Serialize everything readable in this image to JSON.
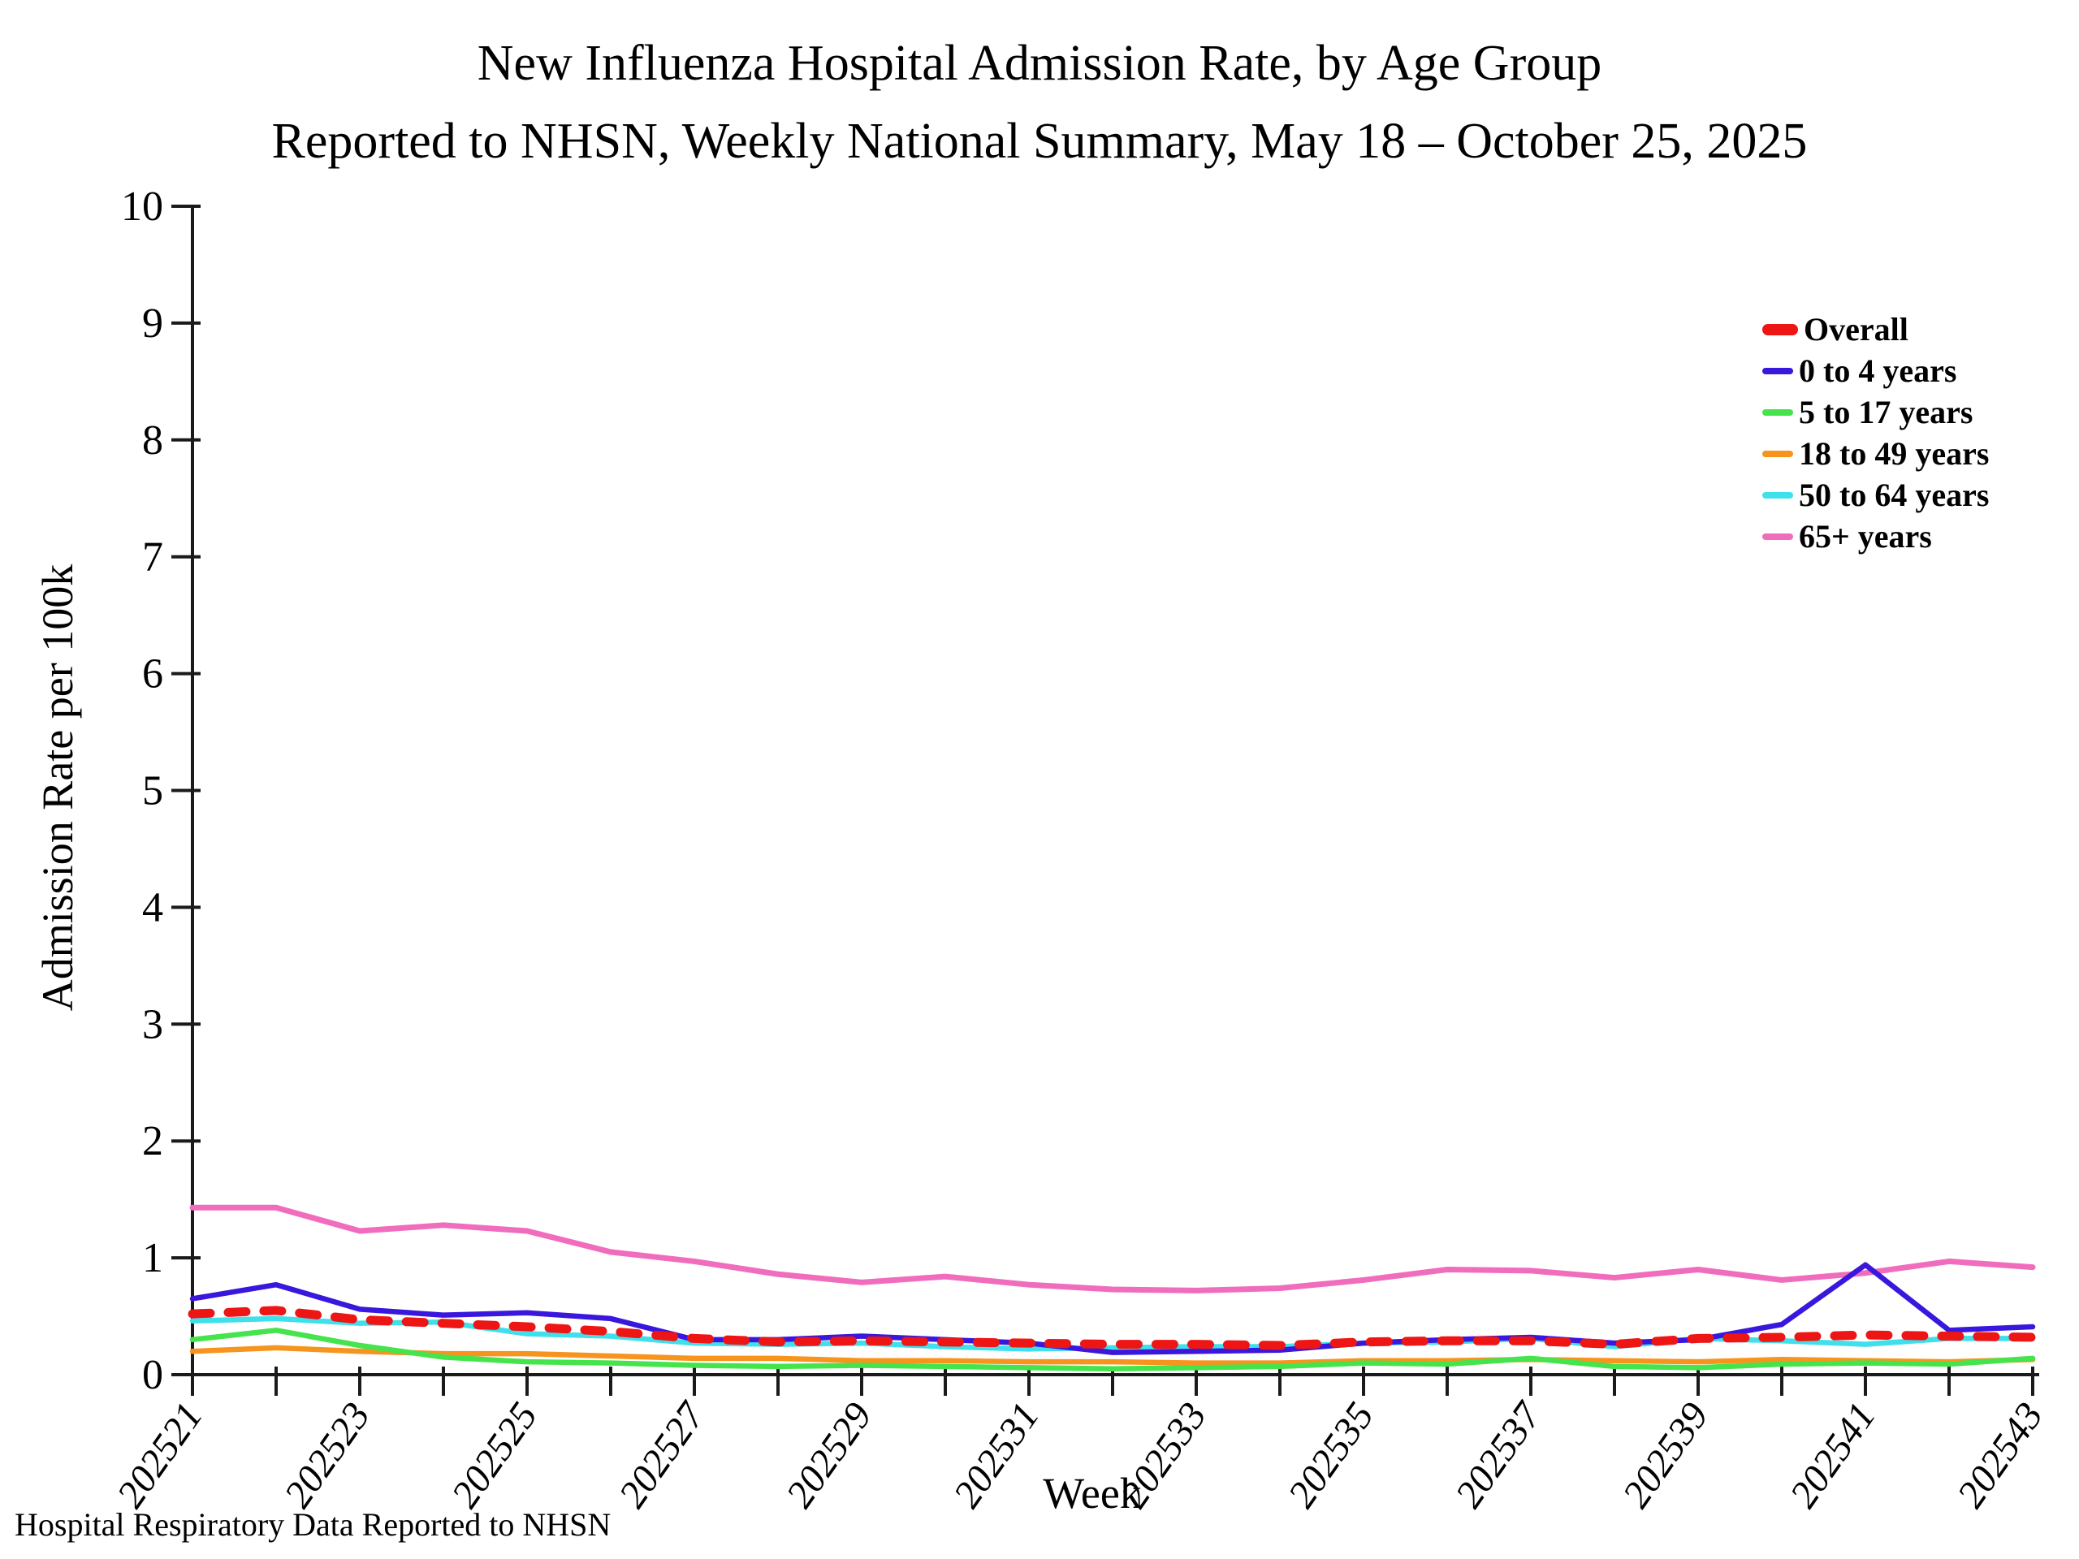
{
  "page": {
    "title_line1": "New Influenza Hospital Admission Rate, by Age Group",
    "title_line2": "Reported to NHSN, Weekly National Summary, May 18 – October 25, 2025",
    "footer": "Hospital Respiratory Data Reported to NHSN"
  },
  "colors": {
    "overall": "#ee1515",
    "age_0_4": "#3a17dd",
    "age_5_17": "#45e44c",
    "age_18_49": "#f7941e",
    "age_50_64": "#3fdfec",
    "age_65_plus": "#f06dbe",
    "axis": "#1a1a1a"
  },
  "chart_data": {
    "type": "line",
    "title": "New Influenza Hospital Admission Rate, by Age Group — Reported to NHSN, Weekly National Summary, May 18 – October 25, 2025",
    "xlabel": "Week",
    "ylabel": "Admission Rate per 100k",
    "ylim": [
      0,
      10
    ],
    "y_ticks": [
      0,
      1,
      2,
      3,
      4,
      5,
      6,
      7,
      8,
      9,
      10
    ],
    "grid": false,
    "legend_position": "top-right",
    "x_label_every": 2,
    "x": [
      202521,
      202522,
      202523,
      202524,
      202525,
      202526,
      202527,
      202528,
      202529,
      202530,
      202531,
      202532,
      202533,
      202534,
      202535,
      202536,
      202537,
      202538,
      202539,
      202540,
      202541,
      202542,
      202543
    ],
    "series": [
      {
        "name": "Overall",
        "color_key": "overall",
        "dashed": true,
        "width": 11,
        "values": [
          0.52,
          0.55,
          0.47,
          0.44,
          0.41,
          0.37,
          0.31,
          0.28,
          0.29,
          0.28,
          0.27,
          0.26,
          0.26,
          0.25,
          0.28,
          0.29,
          0.29,
          0.26,
          0.31,
          0.32,
          0.34,
          0.33,
          0.32
        ]
      },
      {
        "name": "0 to 4 years",
        "color_key": "age_0_4",
        "dashed": false,
        "width": 6.5,
        "values": [
          0.65,
          0.77,
          0.56,
          0.51,
          0.53,
          0.48,
          0.3,
          0.3,
          0.33,
          0.3,
          0.27,
          0.19,
          0.2,
          0.21,
          0.27,
          0.3,
          0.32,
          0.27,
          0.3,
          0.43,
          0.94,
          0.38,
          0.41
        ]
      },
      {
        "name": "5 to 17 years",
        "color_key": "age_5_17",
        "dashed": false,
        "width": 6.5,
        "values": [
          0.3,
          0.38,
          0.25,
          0.15,
          0.11,
          0.1,
          0.08,
          0.07,
          0.08,
          0.07,
          0.06,
          0.05,
          0.06,
          0.07,
          0.1,
          0.09,
          0.14,
          0.07,
          0.06,
          0.09,
          0.1,
          0.09,
          0.14
        ]
      },
      {
        "name": "18 to 49 years",
        "color_key": "age_18_49",
        "dashed": false,
        "width": 6.5,
        "values": [
          0.2,
          0.23,
          0.2,
          0.18,
          0.18,
          0.16,
          0.14,
          0.14,
          0.12,
          0.12,
          0.11,
          0.11,
          0.1,
          0.1,
          0.12,
          0.12,
          0.13,
          0.12,
          0.11,
          0.13,
          0.12,
          0.11,
          0.13
        ]
      },
      {
        "name": "50 to 64 years",
        "color_key": "age_50_64",
        "dashed": false,
        "width": 6.5,
        "values": [
          0.46,
          0.48,
          0.44,
          0.45,
          0.35,
          0.33,
          0.27,
          0.26,
          0.27,
          0.24,
          0.22,
          0.23,
          0.24,
          0.24,
          0.27,
          0.28,
          0.31,
          0.24,
          0.31,
          0.29,
          0.26,
          0.31,
          0.31
        ]
      },
      {
        "name": "65+ years",
        "color_key": "age_65_plus",
        "dashed": false,
        "width": 7,
        "values": [
          1.43,
          1.43,
          1.23,
          1.28,
          1.23,
          1.05,
          0.97,
          0.86,
          0.79,
          0.84,
          0.77,
          0.73,
          0.72,
          0.74,
          0.81,
          0.9,
          0.89,
          0.83,
          0.9,
          0.81,
          0.87,
          0.97,
          0.92
        ]
      }
    ]
  }
}
